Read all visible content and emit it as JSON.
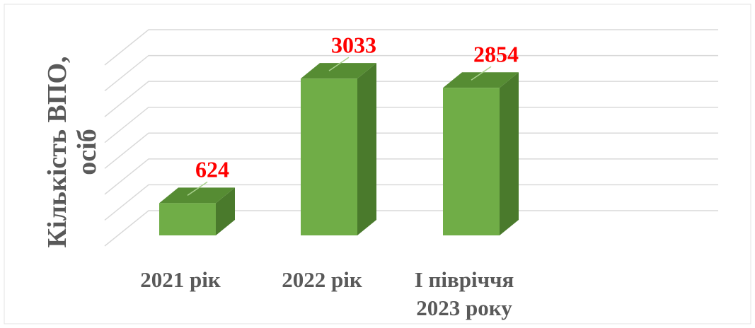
{
  "chart_data": {
    "type": "bar3d",
    "y_axis_label": "Кількість ВПО, осіб",
    "categories": [
      "2021 рік",
      "2022 рік",
      "І півріччя 2023 року"
    ],
    "values": [
      624,
      3033,
      2854
    ],
    "color": "#70ad47",
    "value_label_color": "#ff0000",
    "ylim": [
      0,
      3500
    ],
    "yticks": [
      0,
      500,
      1000,
      1500,
      2000,
      2500,
      3000,
      3500
    ],
    "grid": true
  }
}
